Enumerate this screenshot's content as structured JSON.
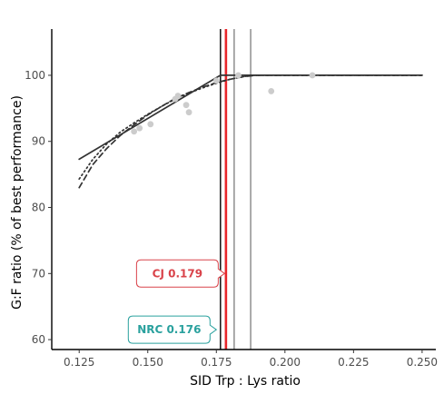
{
  "chart_data": {
    "type": "scatter",
    "xlabel": "SID Trp : Lys ratio",
    "ylabel": "G:F ratio (% of best performance)",
    "xlim": [
      0.115,
      0.255
    ],
    "ylim": [
      58.5,
      107
    ],
    "x_ticks": [
      0.125,
      0.15,
      0.175,
      0.2,
      0.225,
      0.25
    ],
    "x_tick_labels": [
      "0.125",
      "0.150",
      "0.175",
      "0.200",
      "0.225",
      "0.250"
    ],
    "y_ticks": [
      60,
      70,
      80,
      90,
      100
    ],
    "y_tick_labels": [
      "60",
      "70",
      "80",
      "90",
      "100"
    ],
    "grid": false,
    "observations": {
      "color": "#cccccc",
      "points": [
        {
          "x": 0.145,
          "y": 91.5
        },
        {
          "x": 0.147,
          "y": 92.0
        },
        {
          "x": 0.151,
          "y": 92.6
        },
        {
          "x": 0.16,
          "y": 96.4
        },
        {
          "x": 0.161,
          "y": 96.9
        },
        {
          "x": 0.164,
          "y": 95.5
        },
        {
          "x": 0.165,
          "y": 94.4
        },
        {
          "x": 0.175,
          "y": 99.2
        },
        {
          "x": 0.183,
          "y": 100.0
        },
        {
          "x": 0.195,
          "y": 97.6
        },
        {
          "x": 0.21,
          "y": 100.0
        }
      ]
    },
    "models": [
      {
        "style": "solid",
        "color": "#333333",
        "x": [
          0.125,
          0.1765,
          0.25
        ],
        "y": [
          87.3,
          100.0,
          100.0
        ]
      },
      {
        "style": "dashed",
        "color": "#333333",
        "x": [
          0.125,
          0.13,
          0.135,
          0.14,
          0.145,
          0.15,
          0.155,
          0.16,
          0.165,
          0.17,
          0.175,
          0.18,
          0.185,
          0.19,
          0.25
        ],
        "y": [
          83.0,
          86.5,
          88.9,
          90.9,
          92.5,
          94.0,
          95.3,
          96.5,
          97.4,
          98.2,
          98.9,
          99.4,
          99.8,
          100.0,
          100.0
        ]
      },
      {
        "style": "dotted",
        "color": "#333333",
        "x": [
          0.125,
          0.13,
          0.135,
          0.14,
          0.145,
          0.15,
          0.155,
          0.16,
          0.165,
          0.17,
          0.175,
          0.18,
          0.185,
          0.188,
          0.25
        ],
        "y": [
          84.3,
          87.3,
          89.6,
          91.4,
          92.8,
          94.1,
          95.3,
          96.4,
          97.3,
          98.1,
          98.8,
          99.4,
          99.8,
          100.0,
          100.0
        ]
      }
    ],
    "vlines": [
      {
        "x": 0.1765,
        "color": "#000000",
        "width": 1.4
      },
      {
        "x": 0.1785,
        "color": "#e8262b",
        "width": 2.6
      },
      {
        "x": 0.1815,
        "color": "#555555",
        "width": 1.0
      },
      {
        "x": 0.1875,
        "color": "#555555",
        "width": 1.0
      }
    ],
    "annotations": [
      {
        "label": "CJ 0.179",
        "x": 0.179,
        "y": 70,
        "color": "#d9434a"
      },
      {
        "label": "NRC 0.176",
        "x": 0.176,
        "y": 61.5,
        "color": "#2aa19e"
      }
    ]
  }
}
